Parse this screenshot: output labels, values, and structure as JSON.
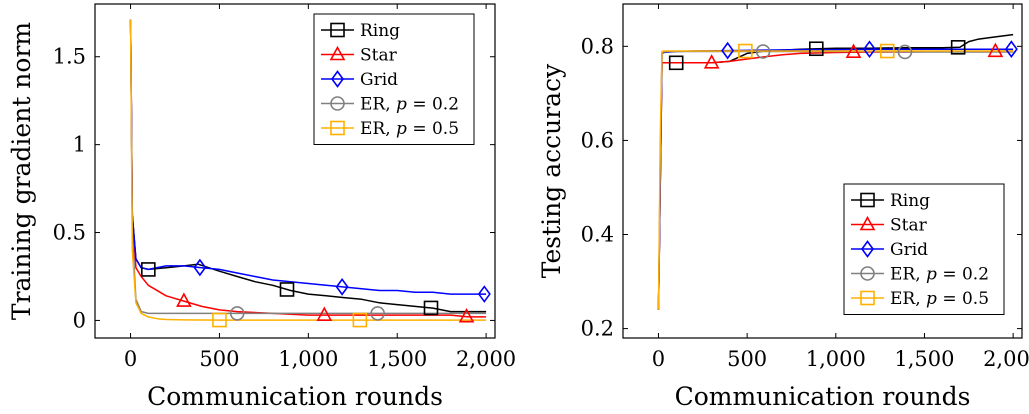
{
  "chart_data": [
    {
      "type": "line",
      "xlabel": "Communication rounds",
      "ylabel": "Training gradient norm",
      "xlim": [
        -200,
        2050
      ],
      "ylim": [
        -0.1,
        1.8
      ],
      "xticks": [
        0,
        500,
        1000,
        1500,
        2000
      ],
      "xtick_labels": [
        "0",
        "500",
        "1,000",
        "1,500",
        "2,000"
      ],
      "yticks": [
        0,
        0.5,
        1,
        1.5
      ],
      "ytick_labels": [
        "0",
        "0.5",
        "1",
        "1.5"
      ],
      "legend_position": "top-right",
      "series": [
        {
          "name": "Ring",
          "color": "#000000",
          "marker": "square",
          "x": [
            0,
            10,
            30,
            60,
            100,
            200,
            300,
            380,
            500,
            600,
            700,
            800,
            900,
            1000,
            1100,
            1200,
            1300,
            1400,
            1500,
            1600,
            1700,
            1800,
            1900,
            2000
          ],
          "y": [
            1.71,
            0.6,
            0.35,
            0.3,
            0.29,
            0.3,
            0.31,
            0.32,
            0.28,
            0.25,
            0.22,
            0.2,
            0.17,
            0.15,
            0.14,
            0.13,
            0.12,
            0.1,
            0.09,
            0.08,
            0.07,
            0.05,
            0.05,
            0.05
          ],
          "marker_x": [
            100,
            880,
            1690
          ]
        },
        {
          "name": "Star",
          "color": "#ff0000",
          "marker": "triangle",
          "x": [
            0,
            10,
            30,
            60,
            100,
            200,
            300,
            400,
            500,
            600,
            800,
            1000,
            1200,
            1400,
            1600,
            1800,
            1900,
            2000
          ],
          "y": [
            1.71,
            0.6,
            0.3,
            0.25,
            0.2,
            0.14,
            0.11,
            0.08,
            0.06,
            0.05,
            0.04,
            0.03,
            0.03,
            0.03,
            0.03,
            0.03,
            0.02,
            0.02
          ],
          "marker_x": [
            300,
            1090,
            1890
          ]
        },
        {
          "name": "Grid",
          "color": "#0000ff",
          "marker": "diamond",
          "x": [
            0,
            10,
            30,
            60,
            100,
            200,
            300,
            400,
            500,
            600,
            700,
            800,
            900,
            1000,
            1100,
            1200,
            1300,
            1400,
            1500,
            1600,
            1700,
            1800,
            1900,
            2000
          ],
          "y": [
            1.71,
            0.6,
            0.35,
            0.3,
            0.29,
            0.31,
            0.31,
            0.3,
            0.29,
            0.27,
            0.25,
            0.23,
            0.22,
            0.21,
            0.2,
            0.19,
            0.18,
            0.17,
            0.17,
            0.16,
            0.16,
            0.15,
            0.15,
            0.15
          ],
          "marker_x": [
            390,
            1190,
            1990
          ]
        },
        {
          "name": "ER, p = 0.2",
          "color": "#808080",
          "marker": "circle",
          "x": [
            0,
            10,
            30,
            60,
            100,
            200,
            400,
            600,
            800,
            1000,
            1200,
            1400,
            1600,
            1800,
            2000
          ],
          "y": [
            1.71,
            0.5,
            0.12,
            0.05,
            0.04,
            0.04,
            0.04,
            0.04,
            0.04,
            0.04,
            0.04,
            0.04,
            0.04,
            0.04,
            0.04
          ],
          "marker_x": [
            600,
            1390
          ]
        },
        {
          "name": "ER, p = 0.5",
          "color": "#ffb000",
          "marker": "square",
          "x": [
            0,
            10,
            30,
            60,
            100,
            150,
            200,
            300,
            500,
            1000,
            1500,
            2000
          ],
          "y": [
            1.71,
            0.4,
            0.1,
            0.04,
            0.02,
            0.01,
            0.005,
            0.003,
            0.002,
            0.002,
            0.002,
            0.002
          ],
          "marker_x": [
            500,
            1290
          ]
        }
      ]
    },
    {
      "type": "line",
      "xlabel": "Communication rounds",
      "ylabel": "Testing accuracy",
      "xlim": [
        -200,
        2050
      ],
      "ylim": [
        0.18,
        0.89
      ],
      "xticks": [
        0,
        500,
        1000,
        1500,
        2000
      ],
      "xtick_labels": [
        "0",
        "500",
        "1,000",
        "1,500",
        "2,000"
      ],
      "yticks": [
        0.2,
        0.4,
        0.6,
        0.8
      ],
      "ytick_labels": [
        "0.2",
        "0.4",
        "0.6",
        "0.8"
      ],
      "legend_position": "bottom-right",
      "series": [
        {
          "name": "Ring",
          "color": "#000000",
          "marker": "square",
          "x": [
            0,
            10,
            20,
            30,
            60,
            100,
            200,
            300,
            400,
            500,
            600,
            700,
            800,
            900,
            1000,
            1200,
            1400,
            1600,
            1700,
            1750,
            1800,
            1900,
            2000
          ],
          "y": [
            0.24,
            0.5,
            0.765,
            0.765,
            0.765,
            0.765,
            0.765,
            0.765,
            0.768,
            0.785,
            0.79,
            0.792,
            0.794,
            0.795,
            0.796,
            0.796,
            0.797,
            0.797,
            0.798,
            0.81,
            0.815,
            0.82,
            0.825
          ],
          "marker_x": [
            100,
            890,
            1690
          ]
        },
        {
          "name": "Star",
          "color": "#ff0000",
          "marker": "triangle",
          "x": [
            0,
            10,
            20,
            30,
            60,
            100,
            200,
            300,
            400,
            500,
            600,
            700,
            800,
            1000,
            1200,
            1400,
            1600,
            1800,
            2000
          ],
          "y": [
            0.24,
            0.5,
            0.765,
            0.765,
            0.765,
            0.765,
            0.765,
            0.765,
            0.768,
            0.773,
            0.778,
            0.782,
            0.785,
            0.787,
            0.788,
            0.788,
            0.789,
            0.789,
            0.79
          ],
          "marker_x": [
            300,
            1100,
            1900
          ]
        },
        {
          "name": "Grid",
          "color": "#0000ff",
          "marker": "diamond",
          "x": [
            0,
            10,
            20,
            30,
            60,
            100,
            200,
            400,
            600,
            800,
            1000,
            1200,
            1400,
            1600,
            1800,
            2000
          ],
          "y": [
            0.24,
            0.5,
            0.785,
            0.787,
            0.788,
            0.789,
            0.79,
            0.791,
            0.792,
            0.793,
            0.793,
            0.794,
            0.794,
            0.794,
            0.794,
            0.794
          ],
          "marker_x": [
            390,
            1190,
            1990
          ]
        },
        {
          "name": "ER, p = 0.2",
          "color": "#808080",
          "marker": "circle",
          "x": [
            0,
            10,
            20,
            30,
            60,
            100,
            200,
            400,
            600,
            800,
            1000,
            1200,
            1400,
            1600,
            1800,
            2000
          ],
          "y": [
            0.24,
            0.55,
            0.787,
            0.788,
            0.789,
            0.789,
            0.789,
            0.789,
            0.789,
            0.789,
            0.789,
            0.789,
            0.788,
            0.788,
            0.788,
            0.788
          ],
          "marker_x": [
            590,
            1390
          ]
        },
        {
          "name": "ER, p = 0.5",
          "color": "#ffb000",
          "marker": "square",
          "x": [
            0,
            10,
            20,
            30,
            60,
            100,
            200,
            400,
            600,
            800,
            1000,
            1200,
            1400,
            1600,
            1800,
            2000
          ],
          "y": [
            0.24,
            0.6,
            0.789,
            0.79,
            0.79,
            0.79,
            0.79,
            0.79,
            0.79,
            0.79,
            0.79,
            0.79,
            0.79,
            0.79,
            0.79,
            0.79
          ],
          "marker_x": [
            490,
            1290
          ]
        }
      ]
    }
  ]
}
